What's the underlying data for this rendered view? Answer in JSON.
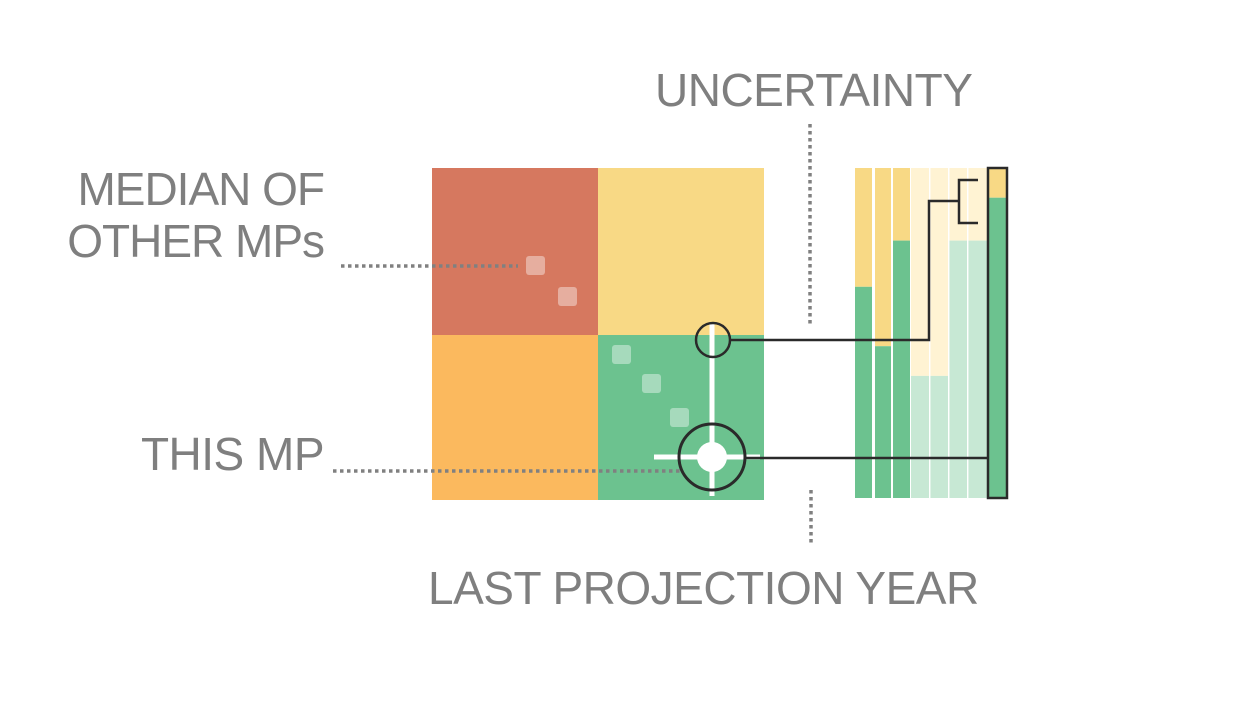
{
  "labels": {
    "uncertainty": "UNCERTAINTY",
    "median_line1": "MEDIAN OF",
    "median_line2": "OTHER MPs",
    "this_mp": "THIS MP",
    "last_projection_year": "LAST PROJECTION YEAR"
  },
  "colors": {
    "red": "#d6785f",
    "yellow": "#f8d985",
    "orange": "#fbb95e",
    "green": "#6cc28f",
    "light_yellow": "#fff3d3",
    "light_green": "#c7e8d4",
    "dotted_line": "#808080",
    "outline": "#2a2a2a"
  },
  "uncertainty_bars": [
    {
      "name": "bar-1",
      "green_fraction": 0.64
    },
    {
      "name": "bar-2",
      "green_fraction": 0.46
    },
    {
      "name": "bar-3",
      "green_fraction": 0.78
    },
    {
      "name": "bar-4",
      "green_fraction": 0.37,
      "light": true
    },
    {
      "name": "bar-5",
      "green_fraction": 0.37,
      "light": true
    },
    {
      "name": "bar-6",
      "green_fraction": 0.78,
      "light": true
    },
    {
      "name": "bar-7",
      "green_fraction": 0.78,
      "light": true
    },
    {
      "name": "bar-8",
      "green_fraction": 0.91,
      "highlight": true
    }
  ]
}
